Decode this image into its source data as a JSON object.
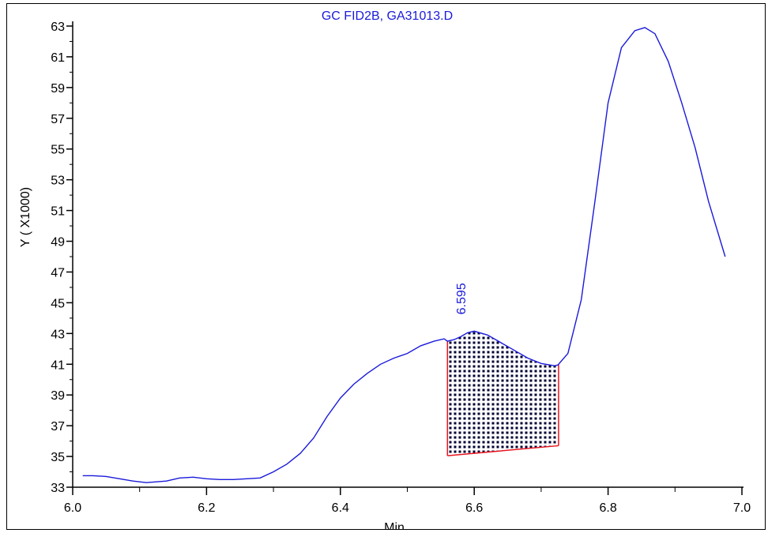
{
  "chart_data": {
    "type": "line",
    "title": "GC FID2B, GA31013.D",
    "xlabel": "Min",
    "ylabel": "Y ( X1000)",
    "xlim": [
      6.0,
      7.0
    ],
    "ylim": [
      33,
      63
    ],
    "x_ticks": [
      "6.0",
      "6.2",
      "6.4",
      "6.6",
      "6.8",
      "7.0"
    ],
    "y_ticks": [
      "33",
      "35",
      "37",
      "39",
      "41",
      "43",
      "45",
      "47",
      "49",
      "51",
      "53",
      "55",
      "57",
      "59",
      "61",
      "63"
    ],
    "grid": false,
    "series": [
      {
        "color": "#1a1adb",
        "x": [
          6.015,
          6.03,
          6.05,
          6.07,
          6.09,
          6.11,
          6.125,
          6.14,
          6.16,
          6.18,
          6.2,
          6.22,
          6.24,
          6.26,
          6.28,
          6.3,
          6.32,
          6.34,
          6.36,
          6.38,
          6.4,
          6.42,
          6.44,
          6.46,
          6.48,
          6.5,
          6.52,
          6.54,
          6.555,
          6.56,
          6.57,
          6.58,
          6.59,
          6.6,
          6.62,
          6.64,
          6.66,
          6.68,
          6.7,
          6.72,
          6.725,
          6.74,
          6.76,
          6.78,
          6.8,
          6.82,
          6.84,
          6.855,
          6.87,
          6.89,
          6.91,
          6.93,
          6.95,
          6.975
        ],
        "y": [
          33.75,
          33.75,
          33.7,
          33.55,
          33.4,
          33.3,
          33.35,
          33.4,
          33.6,
          33.65,
          33.55,
          33.5,
          33.5,
          33.55,
          33.6,
          34.0,
          34.5,
          35.2,
          36.2,
          37.6,
          38.8,
          39.7,
          40.4,
          41.0,
          41.4,
          41.7,
          42.2,
          42.5,
          42.65,
          42.5,
          42.6,
          42.8,
          43.05,
          43.15,
          42.9,
          42.4,
          41.9,
          41.4,
          41.05,
          40.9,
          40.95,
          41.7,
          45.2,
          51.5,
          58.0,
          61.6,
          62.7,
          62.9,
          62.5,
          60.7,
          58.0,
          55.1,
          51.6,
          48.0
        ]
      }
    ],
    "peak": {
      "label": "6.595",
      "start_x": 6.56,
      "end_x": 6.726,
      "baseline_start_y": 35.05,
      "baseline_end_y": 35.7,
      "fill_color": "#000033",
      "border_color": "#e8141e"
    }
  }
}
